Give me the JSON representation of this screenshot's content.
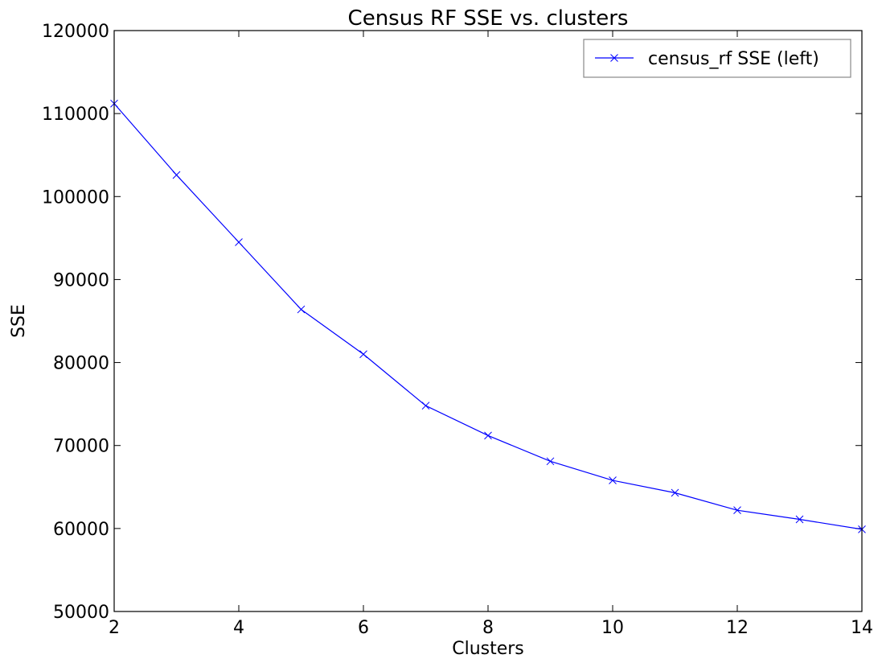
{
  "chart_data": {
    "type": "line",
    "title": "Census RF SSE vs. clusters",
    "xlabel": "Clusters",
    "ylabel": "SSE",
    "xlim": [
      2,
      14
    ],
    "ylim": [
      50000,
      120000
    ],
    "xticks": [
      2,
      4,
      6,
      8,
      10,
      12,
      14
    ],
    "yticks": [
      50000,
      60000,
      70000,
      80000,
      90000,
      100000,
      110000,
      120000
    ],
    "grid": false,
    "legend": {
      "placement": "top-right",
      "entries": [
        "census_rf SSE (left)"
      ]
    },
    "colors": {
      "series": "#0000ff",
      "axes": "#000000",
      "legend_border": "#888888"
    },
    "marker": "x",
    "series": [
      {
        "name": "census_rf SSE (left)",
        "x": [
          2,
          3,
          4,
          5,
          6,
          7,
          8,
          9,
          10,
          11,
          12,
          13,
          14
        ],
        "values": [
          111200,
          102600,
          94500,
          86400,
          81000,
          74800,
          71200,
          68100,
          65800,
          64300,
          62200,
          61100,
          59900
        ]
      }
    ]
  }
}
